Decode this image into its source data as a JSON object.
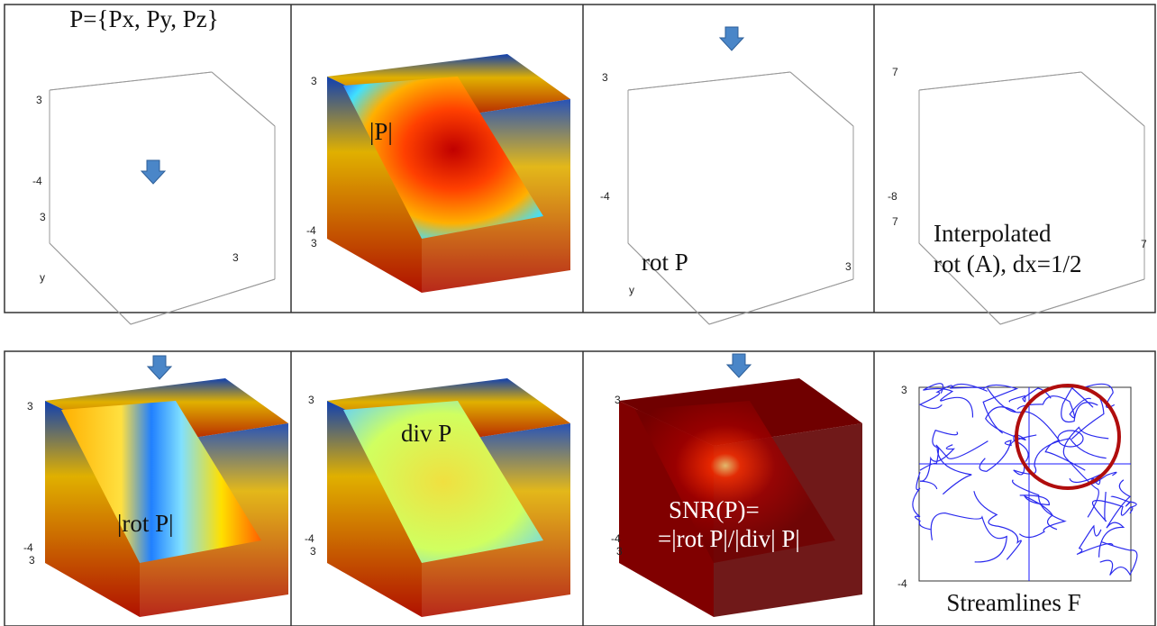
{
  "panels": [
    {
      "lines": [
        "P={Px, Py, Pz}"
      ],
      "ticks": [
        "3",
        "-4",
        "3",
        "y",
        "3"
      ]
    },
    {
      "lines": [
        "|P|"
      ],
      "ticks": [
        "3",
        "-4",
        "3"
      ]
    },
    {
      "lines": [
        "rot P"
      ],
      "ticks": [
        "3",
        "-4",
        "y",
        "3"
      ]
    },
    {
      "lines": [
        "Interpolated",
        "rot (A), dx=1/2"
      ],
      "ticks": [
        "7",
        "-8",
        "7",
        "7"
      ]
    },
    {
      "lines": [
        "|rot P|"
      ],
      "ticks": [
        "3",
        "-4",
        "3"
      ]
    },
    {
      "lines": [
        "div P"
      ],
      "ticks": [
        "3",
        "-4",
        "3"
      ]
    },
    {
      "lines": [
        "SNR(P)=",
        "=|rot P|/|div| P|"
      ],
      "ticks": [
        "3",
        "-4",
        "3"
      ]
    },
    {
      "lines": [
        "Streamlines F"
      ],
      "ticks": [
        "3",
        "-4"
      ]
    }
  ]
}
